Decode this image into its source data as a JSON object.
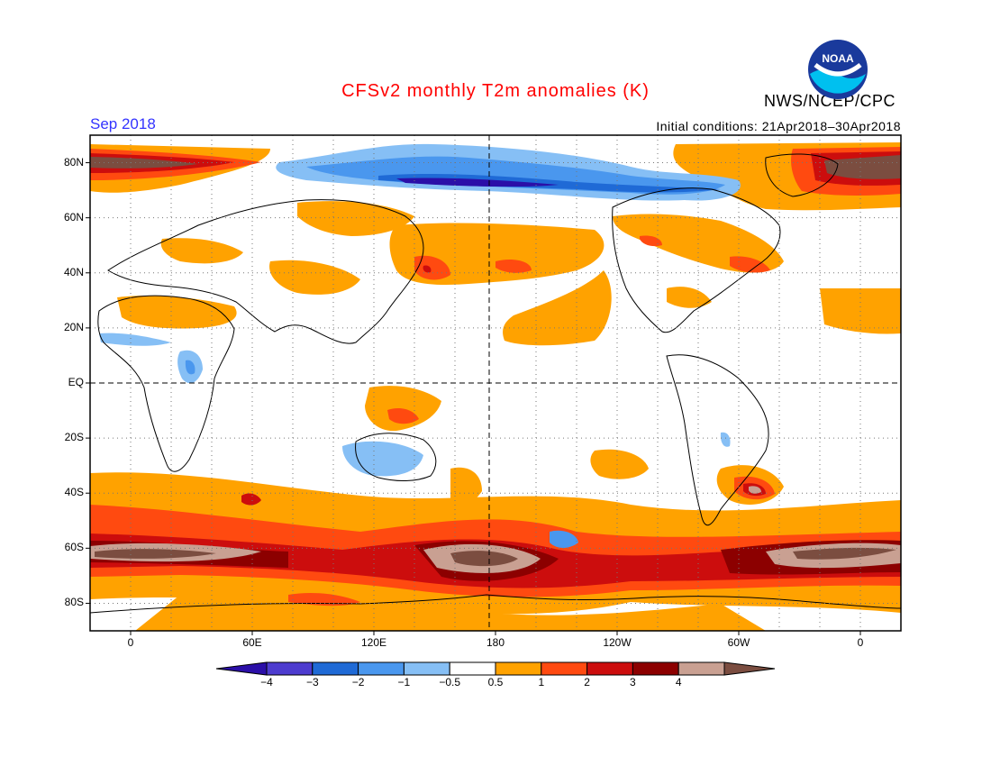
{
  "header": {
    "title": "CFSv2 monthly T2m anomalies (K)",
    "month": "Sep 2018",
    "initial_conditions": "Initial conditions: 21Apr2018–30Apr2018",
    "agency": "NWS/NCEP/CPC",
    "logo_text": "NOAA"
  },
  "axes": {
    "lat_labels": [
      "80N",
      "60N",
      "40N",
      "20N",
      "EQ",
      "20S",
      "40S",
      "60S",
      "80S"
    ],
    "lon_labels": [
      "0",
      "60E",
      "120E",
      "180",
      "120W",
      "60W",
      "0"
    ]
  },
  "colorbar": {
    "labels": [
      "−4",
      "−3",
      "−2",
      "−1",
      "−0.5",
      "0.5",
      "1",
      "2",
      "3",
      "4"
    ],
    "colors": [
      "#2b0fa8",
      "#4d3ccf",
      "#1f6ad6",
      "#4a97ee",
      "#86bff5",
      "#ffffff",
      "#ffa200",
      "#ff4a10",
      "#cc0d0d",
      "#8c0000",
      "#c9a092",
      "#7b4d40"
    ]
  },
  "palette": {
    "neg4": "#2b0fa8",
    "neg3": "#4d3ccf",
    "neg2": "#1f6ad6",
    "neg1": "#4a97ee",
    "neg05": "#86bff5",
    "pos05": "#ffa200",
    "pos1": "#ff4a10",
    "pos2": "#cc0d0d",
    "pos3": "#8c0000",
    "pos4a": "#c9a092",
    "pos4b": "#7b4d40"
  },
  "map": {
    "projection": "cylindrical equidistant",
    "lat_range": [
      -90,
      90
    ],
    "lon_range": [
      -20,
      380
    ],
    "grid_interval_deg": 20
  }
}
